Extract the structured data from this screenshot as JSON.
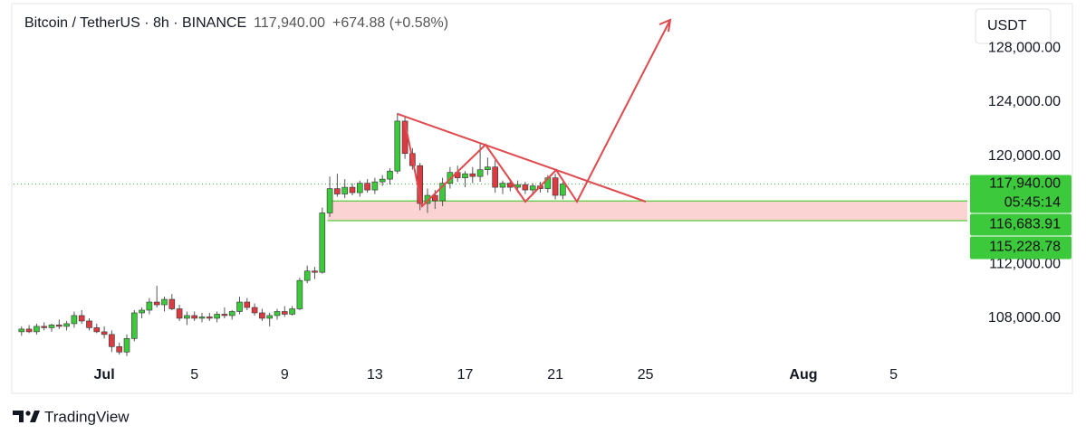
{
  "chart_data": {
    "type": "candlestick",
    "title": "Bitcoin / TetherUS · 8h · BINANCE",
    "last_price": {
      "value": 117940,
      "label": "117,940.00"
    },
    "change": "+674.88 (+0.58%)",
    "currency": "USDT",
    "countdown": "05:45:14",
    "brand": "TradingView",
    "up_color": "#3cc93c",
    "down_color": "#db3b41",
    "x": [
      -2.667,
      -2.333,
      -2,
      -1.667,
      -1.333,
      -1,
      -0.667,
      -0.333,
      0,
      0.333,
      0.667,
      1,
      1.333,
      1.667,
      2,
      2.333,
      2.667,
      3,
      3.333,
      3.667,
      4,
      4.333,
      4.667,
      5,
      5.333,
      5.667,
      6,
      6.333,
      6.667,
      7,
      7.333,
      7.667,
      8,
      8.333,
      8.667,
      9,
      9.333,
      9.667,
      10,
      10.333,
      10.667,
      11,
      11.333,
      11.667,
      12,
      12.333,
      12.667,
      13,
      13.333,
      13.667,
      14,
      14.333,
      14.667,
      15,
      15.333,
      15.667,
      16,
      16.333,
      16.667,
      17,
      17.333,
      17.667,
      18,
      18.333,
      18.667,
      19,
      19.333,
      19.667,
      20,
      20.333,
      20.667,
      21,
      21.333
    ],
    "open": [
      107000,
      107200,
      107000,
      107400,
      107300,
      107500,
      107400,
      107600,
      108200,
      107800,
      107300,
      107000,
      106800,
      105900,
      105500,
      106500,
      108400,
      108600,
      109200,
      109000,
      109400,
      108700,
      108000,
      108200,
      108000,
      108100,
      108000,
      108300,
      108200,
      108500,
      109200,
      108800,
      108400,
      108000,
      108200,
      108500,
      108300,
      108700,
      110800,
      111500,
      111400,
      115800,
      117600,
      117200,
      117700,
      117300,
      118000,
      117500,
      118100,
      118300,
      118900,
      122600,
      120200,
      119300,
      116500,
      117100,
      116700,
      118000,
      118800,
      118400,
      118700,
      118500,
      119000,
      119200,
      117700,
      118000,
      117700,
      117900,
      117500,
      117800,
      117600,
      118400,
      117100
    ],
    "high": [
      107400,
      107500,
      107600,
      107700,
      107600,
      107900,
      107800,
      108500,
      108600,
      108000,
      107600,
      107400,
      107100,
      106200,
      106800,
      108600,
      108800,
      109500,
      110400,
      109600,
      109800,
      109000,
      108500,
      108500,
      108400,
      108400,
      108500,
      108800,
      108600,
      109600,
      109500,
      109100,
      108700,
      108400,
      108700,
      108900,
      108900,
      111000,
      111900,
      111800,
      116200,
      118500,
      118700,
      118300,
      118000,
      118200,
      118300,
      118400,
      118600,
      119100,
      123200,
      123000,
      120600,
      119500,
      117600,
      117500,
      118400,
      119200,
      119300,
      118900,
      119200,
      120900,
      119900,
      119700,
      118200,
      118300,
      118200,
      118100,
      118000,
      118100,
      118600,
      118700,
      118100
    ],
    "low": [
      106700,
      106900,
      106800,
      107100,
      107000,
      107200,
      107100,
      107300,
      107600,
      107100,
      106900,
      106500,
      105500,
      105300,
      105200,
      106300,
      108000,
      108300,
      108800,
      108500,
      108600,
      107800,
      107500,
      107800,
      107700,
      107800,
      107700,
      108000,
      107900,
      108300,
      108600,
      108200,
      107800,
      107400,
      107900,
      108100,
      108200,
      108600,
      110600,
      110900,
      111300,
      115500,
      117000,
      116900,
      117100,
      117000,
      117300,
      117200,
      117800,
      117900,
      118700,
      119800,
      119000,
      116000,
      115800,
      116100,
      116300,
      117600,
      118100,
      117700,
      118000,
      118100,
      118600,
      117300,
      117200,
      117400,
      117300,
      117200,
      117100,
      117300,
      117300,
      116800,
      116800
    ],
    "close": [
      107200,
      107000,
      107400,
      107300,
      107500,
      107400,
      107600,
      108200,
      107800,
      107300,
      107000,
      106800,
      105900,
      105500,
      106500,
      108400,
      108600,
      109200,
      109000,
      109400,
      108700,
      108000,
      108200,
      108000,
      108100,
      108000,
      108300,
      108200,
      108500,
      109200,
      108800,
      108400,
      108000,
      108200,
      108500,
      108300,
      108700,
      110800,
      111500,
      111400,
      115800,
      117600,
      117200,
      117700,
      117300,
      118000,
      117500,
      118100,
      118300,
      118900,
      122600,
      120200,
      119300,
      116500,
      117100,
      116700,
      118000,
      118800,
      118400,
      118700,
      118500,
      119000,
      119200,
      117700,
      118000,
      117700,
      117900,
      117500,
      117800,
      117600,
      118400,
      117100,
      117940
    ],
    "zone": {
      "start": 10.9,
      "top": {
        "value": 116683.91,
        "label": "116,683.91"
      },
      "bottom": {
        "value": 115228.78,
        "label": "115,228.78"
      },
      "fill": "#fcd3d3",
      "edge": "#58cc3a"
    },
    "xlim": [
      -3.02,
      39.27
    ],
    "xticks": [
      {
        "value": 1,
        "label": "Jul"
      },
      5,
      9,
      13,
      17,
      21,
      25,
      {
        "value": 32,
        "label": "Aug"
      },
      {
        "value": 36,
        "label": "5"
      }
    ],
    "ylim": [
      102440,
      131230
    ],
    "yticks": [
      {
        "value": 108000,
        "label": "108,000.00"
      },
      {
        "value": 112000,
        "label": "112,000.00"
      },
      {
        "value": 120000,
        "label": "120,000.00"
      },
      {
        "value": 124000,
        "label": "124,000.00"
      },
      {
        "value": 128000,
        "label": "128,000.00"
      }
    ]
  }
}
